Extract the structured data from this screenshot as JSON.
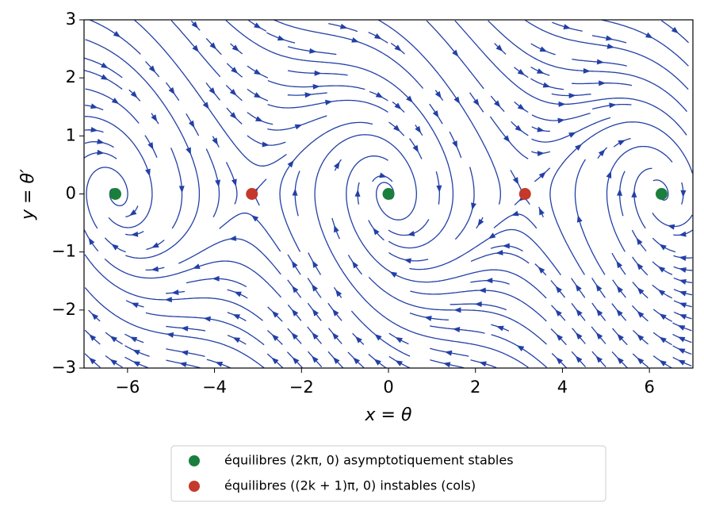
{
  "chart_data": {
    "type": "scatter",
    "xlabel": "x = θ",
    "ylabel": "y = θ′",
    "xlim": [
      -7,
      7
    ],
    "ylim": [
      -3,
      3
    ],
    "xticks": [
      {
        "value": -6,
        "label": "−6"
      },
      {
        "value": -4,
        "label": "−4"
      },
      {
        "value": -2,
        "label": "−2"
      },
      0,
      2,
      4,
      6
    ],
    "yticks": [
      {
        "value": -3,
        "label": "−3"
      },
      {
        "value": -2,
        "label": "−2"
      },
      {
        "value": -1,
        "label": "−1"
      },
      0,
      1,
      2,
      3
    ],
    "stream_color": "#2340a6",
    "series": [
      {
        "name": "équilibres (2kπ, 0) asymptotiquement stables",
        "color": "#1a7f3c",
        "x": [
          -6.28,
          0,
          6.28
        ],
        "values": [
          0,
          0,
          0
        ]
      },
      {
        "name": "équilibres ((2k + 1)π, 0) instables (cols)",
        "color": "#c4392b",
        "x": [
          -3.14,
          3.14
        ],
        "values": [
          0,
          0
        ]
      }
    ]
  }
}
